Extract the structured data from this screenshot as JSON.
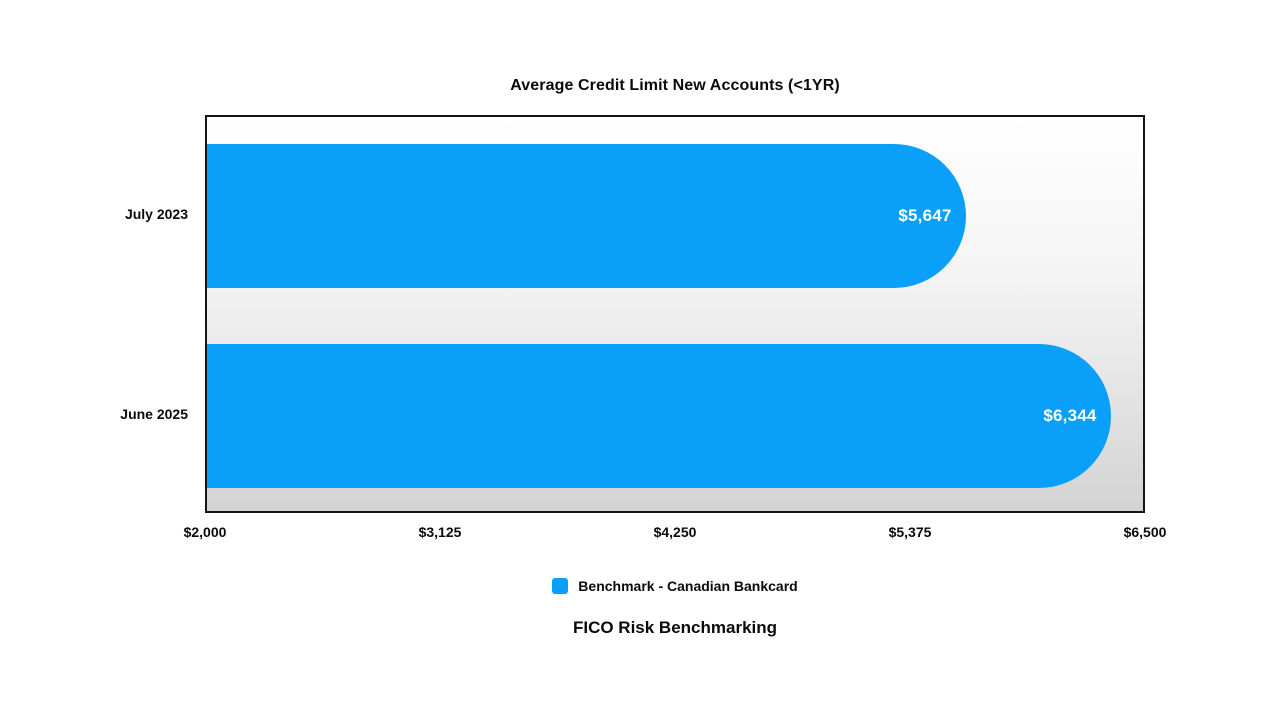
{
  "page": {
    "background": "#ffffff"
  },
  "chart": {
    "title": "Average Credit Limit New Accounts (<1YR)",
    "footer": "FICO Risk Benchmarking",
    "legend": {
      "label": "Benchmark - Canadian Bankcard",
      "swatch_color": "#0a9ff8"
    }
  },
  "chart_data": {
    "type": "bar",
    "orientation": "horizontal",
    "title": "Average Credit Limit New Accounts (<1YR)",
    "categories": [
      "July 2023",
      "June 2025"
    ],
    "series": [
      {
        "name": "Benchmark - Canadian Bankcard",
        "values": [
          5647,
          6344
        ],
        "color": "#0a9ff8"
      }
    ],
    "value_labels": [
      "$5,647",
      "$6,344"
    ],
    "xlabel": "",
    "ylabel": "",
    "xlim": [
      2000,
      6500
    ],
    "x_tick_values": [
      2000,
      3125,
      4250,
      5375,
      6500
    ],
    "x_tick_labels": [
      "$2,000",
      "$3,125",
      "$4,250",
      "$5,375",
      "$6,500"
    ],
    "grid": false,
    "legend_position": "bottom",
    "plot_background_gradient": [
      "#ffffff",
      "#d3d3d3"
    ],
    "plot_border_color": "#141414",
    "value_label_color": "#ffffff"
  }
}
